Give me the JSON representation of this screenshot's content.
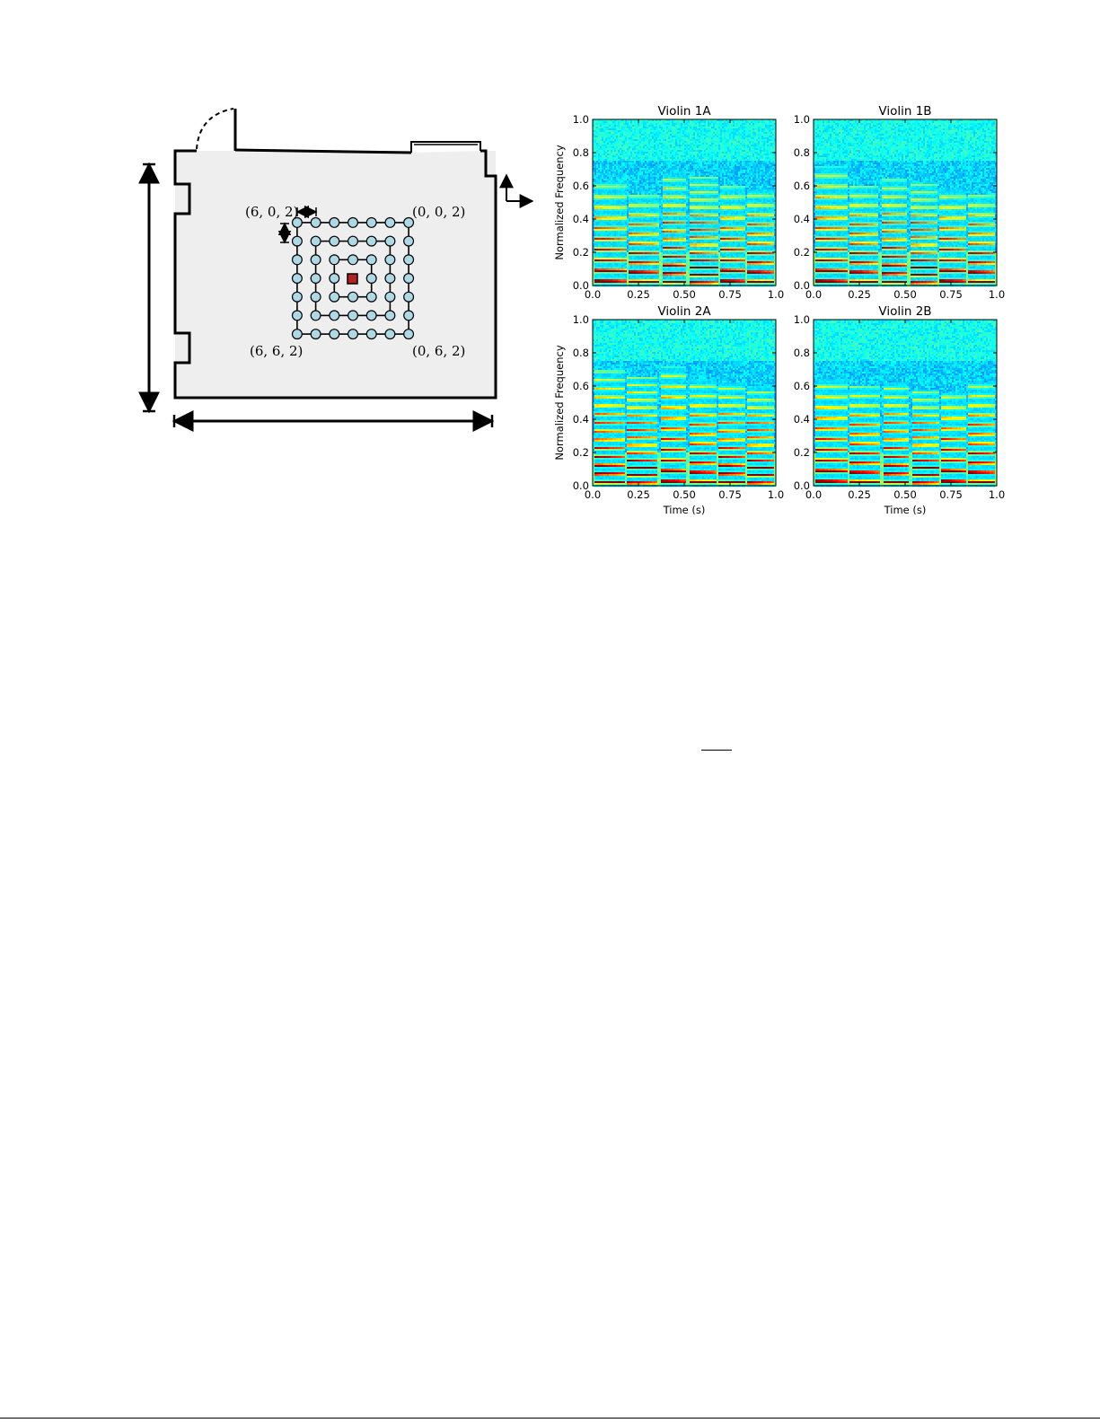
{
  "room_diagram": {
    "corner_labels": {
      "top_left": "(6, 0, 2)",
      "top_right": "(0, 0, 2)",
      "bottom_left": "(6, 6, 2)",
      "bottom_right": "(0, 6, 2)"
    },
    "grid": {
      "rings": [
        {
          "side": 6,
          "points_per_side": 7
        },
        {
          "side": 4,
          "points_per_side": 5
        },
        {
          "side": 2,
          "points_per_side": 3
        }
      ],
      "marker_color": "#ADD8E6",
      "source_color": "#B22222"
    },
    "room_fill": "#EEEEEE"
  },
  "chart_data": [
    {
      "type": "heatmap",
      "title": "Violin 1A",
      "xlabel": "",
      "ylabel": "Normalized Frequency",
      "xlim": [
        0.0,
        1.0
      ],
      "ylim": [
        0.0,
        1.0
      ],
      "xticks": [
        "0.0",
        "0.25",
        "0.50",
        "0.75",
        "1.0"
      ],
      "yticks": [
        "0.0",
        "0.2",
        "0.4",
        "0.6",
        "0.8",
        "1.0"
      ],
      "colormap": "jet",
      "note_onsets": [
        0.0,
        0.19,
        0.37,
        0.52,
        0.69,
        0.84,
        1.0
      ],
      "harmonic_reach": [
        0.62,
        0.55,
        0.68,
        0.66,
        0.6,
        0.58
      ],
      "seed": 11
    },
    {
      "type": "heatmap",
      "title": "Violin 1B",
      "xlabel": "",
      "ylabel": "",
      "xlim": [
        0.0,
        1.0
      ],
      "ylim": [
        0.0,
        1.0
      ],
      "xticks": [
        "0.0",
        "0.25",
        "0.50",
        "0.75",
        "1.0"
      ],
      "yticks": [
        "0.0",
        "0.2",
        "0.4",
        "0.6",
        "0.8",
        "1.0"
      ],
      "colormap": "jet",
      "note_onsets": [
        0.0,
        0.19,
        0.36,
        0.52,
        0.68,
        0.84,
        1.0
      ],
      "harmonic_reach": [
        0.72,
        0.6,
        0.64,
        0.62,
        0.58,
        0.55
      ],
      "seed": 23
    },
    {
      "type": "heatmap",
      "title": "Violin 2A",
      "xlabel": "Time (s)",
      "ylabel": "Normalized Frequency",
      "xlim": [
        0.0,
        1.0
      ],
      "ylim": [
        0.0,
        1.0
      ],
      "xticks": [
        "0.0",
        "0.25",
        "0.50",
        "0.75",
        "1.0"
      ],
      "yticks": [
        "0.0",
        "0.2",
        "0.4",
        "0.6",
        "0.8",
        "1.0"
      ],
      "colormap": "jet",
      "note_onsets": [
        0.0,
        0.18,
        0.36,
        0.52,
        0.68,
        0.84,
        1.0
      ],
      "harmonic_reach": [
        0.7,
        0.66,
        0.72,
        0.64,
        0.62,
        0.6
      ],
      "seed": 37
    },
    {
      "type": "heatmap",
      "title": "Violin 2B",
      "xlabel": "Time (s)",
      "ylabel": "",
      "xlim": [
        0.0,
        1.0
      ],
      "ylim": [
        0.0,
        1.0
      ],
      "xticks": [
        "0.0",
        "0.25",
        "0.50",
        "0.75",
        "1.0"
      ],
      "yticks": [
        "0.0",
        "0.2",
        "0.4",
        "0.6",
        "0.8",
        "1.0"
      ],
      "colormap": "jet",
      "note_onsets": [
        0.0,
        0.19,
        0.37,
        0.53,
        0.69,
        0.84,
        1.0
      ],
      "harmonic_reach": [
        0.64,
        0.6,
        0.62,
        0.58,
        0.56,
        0.62
      ],
      "seed": 51
    }
  ]
}
